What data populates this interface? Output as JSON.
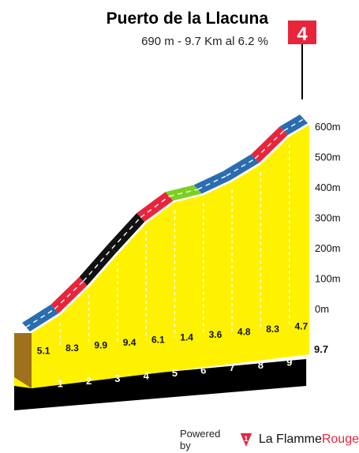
{
  "header": {
    "title": "Puerto de la Llacuna",
    "subtitle": "690 m - 9.7 Km al 6.2 %"
  },
  "category_flag": {
    "label": "4",
    "color": "#e8253b"
  },
  "footer": {
    "powered_by": "Powered by",
    "brand_prefix": "La Flamme",
    "brand_suffix": "Rouge"
  },
  "chart_data": {
    "type": "area",
    "title": "Puerto de la Llacuna",
    "subtitle": "690 m - 9.7 Km al 6.2 %",
    "y_axis": {
      "ticks": [
        "0m",
        "100m",
        "200m",
        "300m",
        "400m",
        "500m",
        "600m"
      ],
      "values": [
        0,
        100,
        200,
        300,
        400,
        500,
        600
      ],
      "range": [
        0,
        700
      ]
    },
    "x_axis": {
      "ticks": [
        "1",
        "2",
        "3",
        "4",
        "5",
        "6",
        "7",
        "8",
        "9"
      ],
      "values": [
        1,
        2,
        3,
        4,
        5,
        6,
        7,
        8,
        9
      ],
      "end_label": "9.7",
      "range": [
        0,
        9.7
      ]
    },
    "km_gradients": [
      "5.1",
      "8.3",
      "9.9",
      "9.4",
      "6.1",
      "1.4",
      "3.6",
      "4.8",
      "8.3",
      "4.7"
    ],
    "km_gradient_values": [
      5.1,
      8.3,
      9.9,
      9.4,
      6.1,
      1.4,
      3.6,
      4.8,
      8.3,
      4.7
    ],
    "colors": {
      "profile_fill": "#fff200",
      "gradient_0_6": "#2a6db0",
      "gradient_6_9": "#e8253b",
      "gradient_9_plus": "#111111",
      "gradient_0_3": "#7ccf23"
    }
  }
}
